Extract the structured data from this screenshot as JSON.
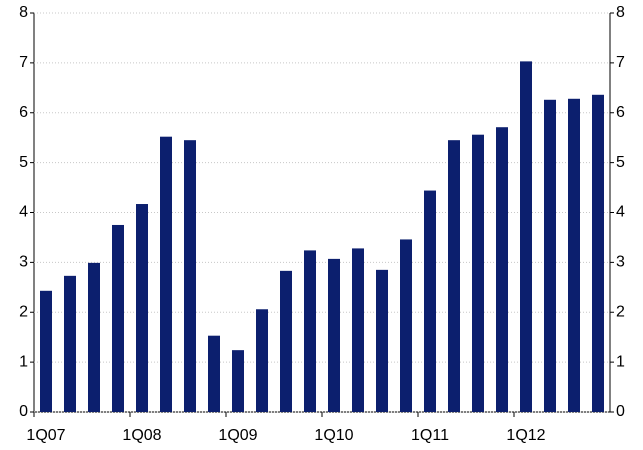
{
  "chart_data": {
    "type": "bar",
    "categories": [
      "1Q07",
      null,
      null,
      null,
      "1Q08",
      null,
      null,
      null,
      "1Q09",
      null,
      null,
      null,
      "1Q10",
      null,
      null,
      null,
      "1Q11",
      null,
      null,
      null,
      "1Q12",
      null,
      null,
      null
    ],
    "values": [
      2.43,
      2.73,
      2.99,
      3.75,
      4.17,
      5.52,
      5.45,
      1.53,
      1.24,
      2.06,
      2.83,
      3.24,
      3.07,
      3.28,
      2.85,
      3.46,
      4.44,
      5.45,
      5.56,
      5.71,
      7.03,
      6.26,
      6.28,
      6.36
    ],
    "color": "#0c1f6e",
    "ylim": [
      0,
      8
    ],
    "yticks": [
      0,
      1,
      2,
      3,
      4,
      5,
      6,
      7,
      8
    ],
    "y2lim": [
      0,
      8
    ],
    "y2ticks": [
      0,
      1,
      2,
      3,
      4,
      5,
      6,
      7,
      8
    ],
    "grid": true
  }
}
